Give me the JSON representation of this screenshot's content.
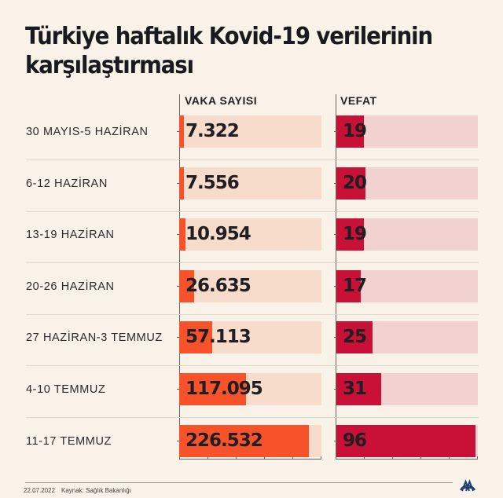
{
  "title": "Türkiye haftalık Kovid-19 verilerinin karşılaştırması",
  "columns": {
    "vaka": "VAKA SAYISI",
    "vefat": "VEFAT"
  },
  "footer": {
    "date": "22.07.2022",
    "source": "Kaynak: Sağlık Bakanlığı",
    "logo": "aa-logo-icon"
  },
  "colors": {
    "background": "#f8f2e8",
    "vaka_bar": "#f7522a",
    "vaka_track": "#f8dccb",
    "vefat_bar": "#c91037",
    "vefat_track": "#f1d2d0"
  },
  "rows": [
    {
      "label": "30 MAYIS-5 HAZİRAN",
      "vaka": "7.322",
      "vefat": "19"
    },
    {
      "label": "6-12 HAZİRAN",
      "vaka": "7.556",
      "vefat": "20"
    },
    {
      "label": "13-19 HAZİRAN",
      "vaka": "10.954",
      "vefat": "19"
    },
    {
      "label": "20-26 HAZİRAN",
      "vaka": "26.635",
      "vefat": "17"
    },
    {
      "label": "27 HAZİRAN-3 TEMMUZ",
      "vaka": "57.113",
      "vefat": "25"
    },
    {
      "label": "4-10 TEMMUZ",
      "vaka": "117.095",
      "vefat": "31"
    },
    {
      "label": "11-17 TEMMUZ",
      "vaka": "226.532",
      "vefat": "96"
    }
  ],
  "chart_data": {
    "type": "bar",
    "orientation": "horizontal",
    "title": "Türkiye haftalık Kovid-19 verilerinin karşılaştırması",
    "categories": [
      "30 MAYIS-5 HAZİRAN",
      "6-12 HAZİRAN",
      "13-19 HAZİRAN",
      "20-26 HAZİRAN",
      "27 HAZİRAN-3 TEMMUZ",
      "4-10 TEMMUZ",
      "11-17 TEMMUZ"
    ],
    "series": [
      {
        "name": "VAKA SAYISI",
        "values": [
          7322,
          7556,
          10954,
          26635,
          57113,
          117095,
          226532
        ],
        "color": "#f7522a",
        "xlim": [
          0,
          248000
        ]
      },
      {
        "name": "VEFAT",
        "values": [
          19,
          20,
          19,
          17,
          25,
          31,
          96
        ],
        "color": "#c91037",
        "xlim": [
          0,
          98
        ]
      }
    ],
    "xlabel": "",
    "ylabel": "",
    "grid": false,
    "legend": "column headers",
    "source": "Kaynak: Sağlık Bakanlığı",
    "date": "22.07.2022"
  }
}
